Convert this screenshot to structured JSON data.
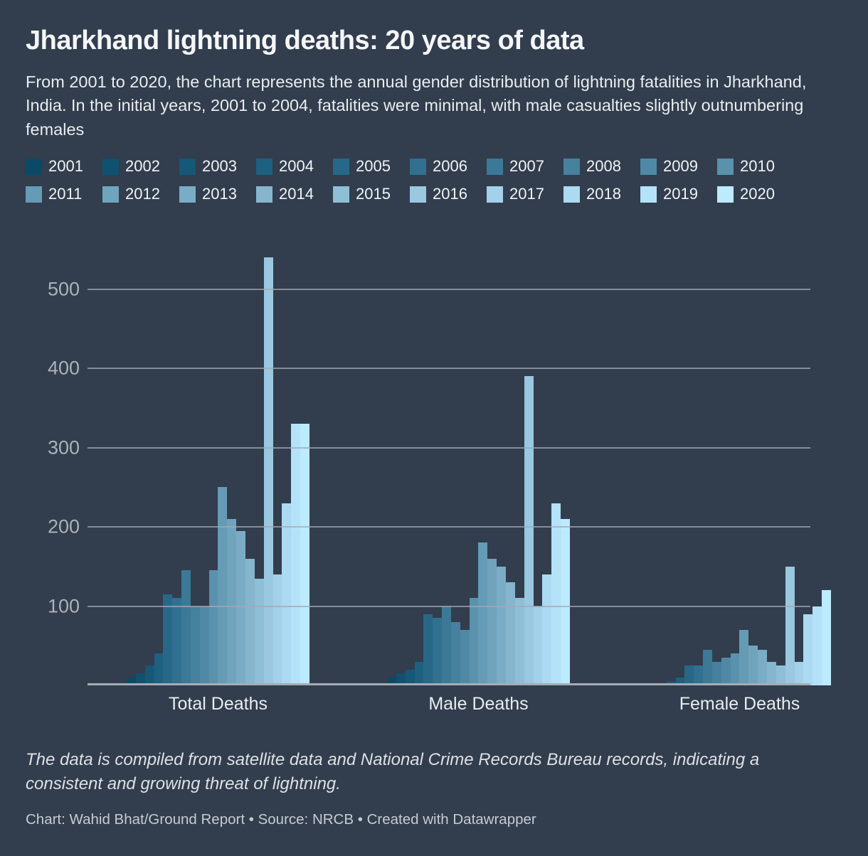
{
  "header": {
    "title": "Jharkhand lightning deaths: 20 years of data",
    "subtitle": "From 2001 to 2020, the chart represents the annual gender distribution of lightning fatalities in Jharkhand, India. In the initial years, 2001 to 2004, fatalities were minimal, with male casualties slightly outnumbering females"
  },
  "chart_data": {
    "type": "bar",
    "variant": "grouped",
    "title": "Jharkhand lightning deaths: 20 years of data",
    "categories": [
      "Total Deaths",
      "Male Deaths",
      "Female Deaths"
    ],
    "series": [
      {
        "name": "2001",
        "color": "#0b4a66",
        "values": [
          10,
          10,
          2
        ]
      },
      {
        "name": "2002",
        "color": "#10516f",
        "values": [
          15,
          15,
          3
        ]
      },
      {
        "name": "2003",
        "color": "#165878",
        "values": [
          25,
          20,
          5
        ]
      },
      {
        "name": "2004",
        "color": "#1d6080",
        "values": [
          40,
          30,
          10
        ]
      },
      {
        "name": "2005",
        "color": "#276889",
        "values": [
          115,
          90,
          25
        ]
      },
      {
        "name": "2006",
        "color": "#317090",
        "values": [
          110,
          85,
          25
        ]
      },
      {
        "name": "2007",
        "color": "#3c7997",
        "values": [
          145,
          100,
          45
        ]
      },
      {
        "name": "2008",
        "color": "#46819e",
        "values": [
          100,
          80,
          30
        ]
      },
      {
        "name": "2009",
        "color": "#5089a6",
        "values": [
          100,
          70,
          35
        ]
      },
      {
        "name": "2010",
        "color": "#5a92ad",
        "values": [
          145,
          110,
          40
        ]
      },
      {
        "name": "2011",
        "color": "#659bb5",
        "values": [
          250,
          180,
          70
        ]
      },
      {
        "name": "2012",
        "color": "#70a4bd",
        "values": [
          210,
          160,
          50
        ]
      },
      {
        "name": "2013",
        "color": "#7aadc5",
        "values": [
          195,
          150,
          45
        ]
      },
      {
        "name": "2014",
        "color": "#85b6ce",
        "values": [
          160,
          130,
          30
        ]
      },
      {
        "name": "2015",
        "color": "#8fbfd7",
        "values": [
          135,
          110,
          25
        ]
      },
      {
        "name": "2016",
        "color": "#99c8e0",
        "values": [
          540,
          390,
          150
        ]
      },
      {
        "name": "2017",
        "color": "#a3d1e9",
        "values": [
          140,
          100,
          30
        ]
      },
      {
        "name": "2018",
        "color": "#acdaf2",
        "values": [
          230,
          140,
          90
        ]
      },
      {
        "name": "2019",
        "color": "#b4e2f9",
        "values": [
          330,
          230,
          100
        ]
      },
      {
        "name": "2020",
        "color": "#bcebfe",
        "values": [
          330,
          210,
          120
        ]
      }
    ],
    "yticks": [
      100,
      200,
      300,
      400,
      500
    ],
    "ylim": [
      0,
      550
    ],
    "grid": true,
    "legend_position": "top",
    "xlabel": "",
    "ylabel": ""
  },
  "footer": {
    "note": "The data is compiled from satellite data and National Crime Records Bureau records, indicating a consistent and growing threat of lightning.",
    "byline": "Chart: Wahid Bhat/Ground Report • Source: NRCB • Created with Datawrapper"
  }
}
